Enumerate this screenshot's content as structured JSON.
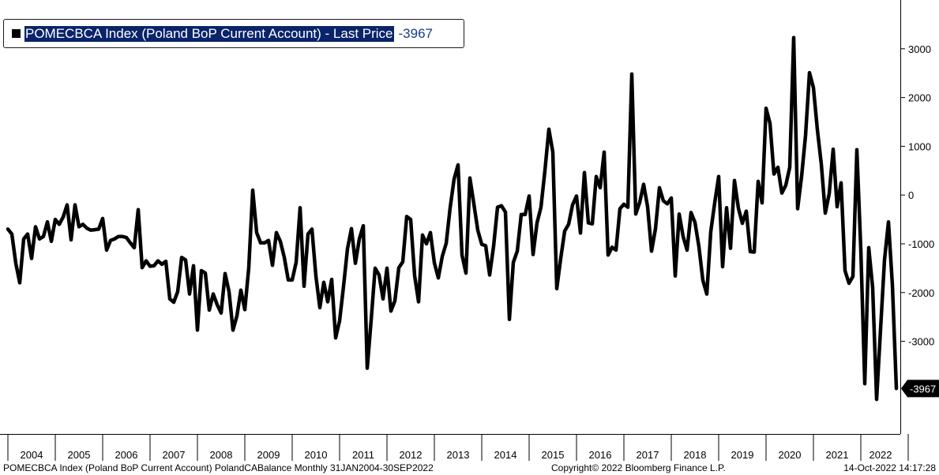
{
  "legend": {
    "label": "POMECBCA Index (Poland BoP Current Account) - Last Price",
    "value": "-3967"
  },
  "footer": {
    "left": "POMECBCA Index (Poland BoP Current Account) PolandCABalance  Monthly 31JAN2004-30SEP2022",
    "center": "Copyright© 2022 Bloomberg Finance L.P.",
    "right": "14-Oct-2022 14:17:28"
  },
  "colors": {
    "line": "#000000",
    "legend_highlight": "#0a246a",
    "last_value_tag": "#000000"
  },
  "chart_data": {
    "type": "line",
    "title": "",
    "xlabel": "",
    "ylabel": "",
    "ylim": [
      -4900,
      4000
    ],
    "xlim": [
      "2003-11",
      "2022-11"
    ],
    "yticks": [
      3000,
      2000,
      1000,
      0,
      -1000,
      -2000,
      -3000
    ],
    "ytick_labels": [
      "3000",
      "2000",
      "1000",
      "0",
      "-1000",
      "-2000",
      "-3000"
    ],
    "xtick_labels": [
      "2004",
      "2005",
      "2006",
      "2007",
      "2008",
      "2009",
      "2010",
      "2011",
      "2012",
      "2013",
      "2014",
      "2015",
      "2016",
      "2017",
      "2018",
      "2019",
      "2020",
      "2021",
      "2022"
    ],
    "last_value_label": "-3967",
    "grid": false,
    "legend_position": "top-left",
    "series": [
      {
        "name": "POMECBCA Index (Poland BoP Current Account) - Last Price",
        "x_start": "2004-01",
        "frequency": "monthly",
        "values": [
          -700,
          -800,
          -1400,
          -1800,
          -900,
          -800,
          -1300,
          -650,
          -900,
          -850,
          -550,
          -950,
          -500,
          -600,
          -450,
          -200,
          -920,
          -200,
          -650,
          -600,
          -680,
          -720,
          -710,
          -700,
          -480,
          -1130,
          -930,
          -900,
          -850,
          -850,
          -870,
          -980,
          -1080,
          -300,
          -1490,
          -1350,
          -1460,
          -1450,
          -1350,
          -1420,
          -1360,
          -2130,
          -2200,
          -1980,
          -1280,
          -1330,
          -2030,
          -1450,
          -2770,
          -1550,
          -1600,
          -2360,
          -2030,
          -2250,
          -2420,
          -1610,
          -1980,
          -2770,
          -2480,
          -1950,
          -2350,
          -1490,
          100,
          -770,
          -980,
          -980,
          -930,
          -1440,
          -770,
          -950,
          -1280,
          -1740,
          -1740,
          -1380,
          -260,
          -1870,
          -800,
          -700,
          -1660,
          -2310,
          -1790,
          -2190,
          -1730,
          -2930,
          -2580,
          -1870,
          -1100,
          -690,
          -1400,
          -900,
          -630,
          -3550,
          -2560,
          -1500,
          -1640,
          -2130,
          -1500,
          -2380,
          -2170,
          -1490,
          -1370,
          -440,
          -500,
          -1650,
          -2190,
          -820,
          -1000,
          -770,
          -1390,
          -1700,
          -1260,
          -990,
          -260,
          330,
          620,
          -1230,
          -1600,
          350,
          -180,
          -720,
          -1010,
          -1040,
          -1640,
          -1050,
          -250,
          -220,
          -350,
          -2550,
          -1380,
          -1150,
          -400,
          -400,
          -20,
          -1220,
          -570,
          -250,
          500,
          1350,
          880,
          -1920,
          -1300,
          -740,
          -600,
          -200,
          -20,
          -780,
          460,
          -570,
          -590,
          380,
          150,
          880,
          -1230,
          -1070,
          -1130,
          -280,
          -190,
          -250,
          2480,
          -390,
          -150,
          220,
          -240,
          -1150,
          -690,
          150,
          -120,
          -180,
          -60,
          -1660,
          -390,
          -850,
          -1130,
          -360,
          -560,
          -1060,
          -1750,
          -2030,
          -750,
          -160,
          380,
          -1470,
          -260,
          -1090,
          300,
          -270,
          -580,
          -330,
          -1160,
          -1170,
          280,
          -160,
          1780,
          1470,
          430,
          570,
          40,
          200,
          570,
          3230,
          -280,
          380,
          1220,
          2510,
          2200,
          1340,
          630,
          -370,
          30,
          940,
          -240,
          250,
          -1550,
          -1810,
          -1670,
          930,
          -1120,
          -3870,
          -1080,
          -1900,
          -4190,
          -2750,
          -1330,
          -550,
          -1850,
          -3967
        ]
      }
    ]
  }
}
